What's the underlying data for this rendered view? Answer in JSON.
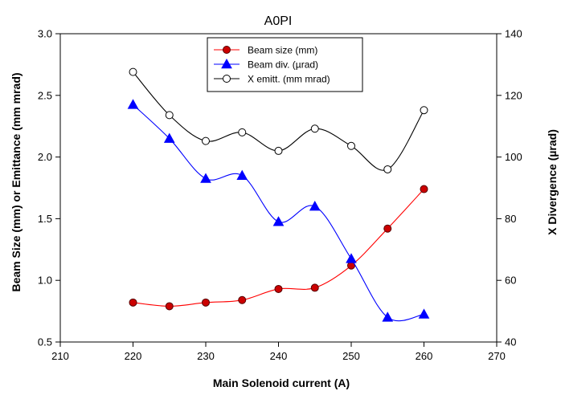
{
  "chart_data": {
    "type": "line",
    "title": "A0PI",
    "xlabel": "Main Solenoid current (A)",
    "ylabel": "Beam Size (mm) or Emittance (mm mrad)",
    "y2label": "X Divergence (µrad)",
    "xlim": [
      210,
      270
    ],
    "ylim": [
      0.5,
      3.0
    ],
    "y2lim": [
      40,
      140
    ],
    "xticks": [
      210,
      220,
      230,
      240,
      250,
      260,
      270
    ],
    "yticks": [
      "0.5",
      "1.0",
      "1.5",
      "2.0",
      "2.5",
      "3.0"
    ],
    "y2ticks": [
      "40",
      "60",
      "80",
      "100",
      "120",
      "140"
    ],
    "grid": false,
    "legend_position": "top-center",
    "x": [
      220,
      225,
      230,
      235,
      240,
      245,
      250,
      255,
      260
    ],
    "series": [
      {
        "name": "Beam size (mm)",
        "axis": "left",
        "marker": "filled-circle",
        "color": "#ff0000",
        "marker_fill": "#cc0000",
        "values": [
          0.82,
          0.79,
          0.82,
          0.84,
          0.93,
          0.94,
          1.12,
          1.42,
          1.74
        ]
      },
      {
        "name": "Beam div. (µrad)",
        "axis": "right",
        "marker": "filled-triangle",
        "color": "#0000ff",
        "marker_fill": "#0000ff",
        "values": [
          117,
          106,
          93,
          94,
          79,
          84,
          67,
          48,
          49
        ]
      },
      {
        "name": "X emitt. (mm mrad)",
        "axis": "left",
        "marker": "open-circle",
        "color": "#000000",
        "marker_fill": "#ffffff",
        "values": [
          2.69,
          2.34,
          2.13,
          2.2,
          2.05,
          2.23,
          2.09,
          1.9,
          2.38
        ]
      }
    ]
  }
}
